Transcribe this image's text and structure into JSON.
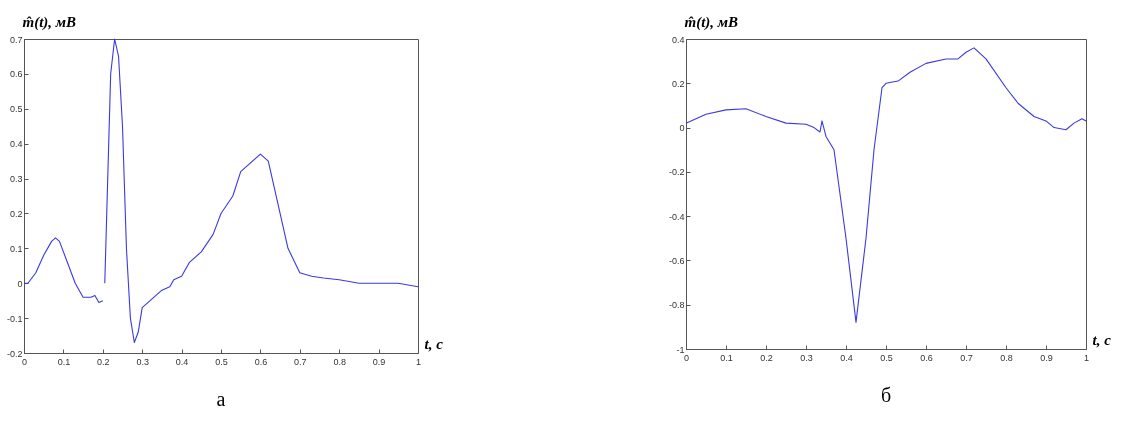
{
  "chart_data": [
    {
      "type": "line",
      "title": "а",
      "xlabel": "t, c",
      "ylabel": "m̂(t), мВ",
      "xlim": [
        0,
        1
      ],
      "xticks": [
        0,
        0.1,
        0.2,
        0.3,
        0.4,
        0.5,
        0.6,
        0.7,
        0.8,
        0.9,
        1
      ],
      "ylim": [
        -0.2,
        0.7
      ],
      "yticks": [
        -0.2,
        -0.1,
        0,
        0.1,
        0.2,
        0.3,
        0.4,
        0.5,
        0.6,
        0.7
      ],
      "grid": false,
      "series": [
        {
          "color": "#3a3ae0",
          "x": [
            0,
            0.01,
            0.03,
            0.05,
            0.07,
            0.08,
            0.09,
            0.11,
            0.13,
            0.15,
            0.17,
            0.18,
            0.19,
            0.2,
            0.202,
            0.205,
            0.21,
            0.22,
            0.23,
            0.24,
            0.25,
            0.26,
            0.27,
            0.28,
            0.29,
            0.3,
            0.33,
            0.35,
            0.37,
            0.38,
            0.4,
            0.42,
            0.45,
            0.48,
            0.5,
            0.53,
            0.55,
            0.57,
            0.6,
            0.62,
            0.65,
            0.67,
            0.7,
            0.73,
            0.76,
            0.8,
            0.85,
            0.9,
            0.95,
            1
          ],
          "values": [
            0,
            0,
            0.03,
            0.08,
            0.12,
            0.13,
            0.12,
            0.06,
            0,
            -0.04,
            -0.04,
            -0.035,
            -0.055,
            -0.05,
            null,
            0,
            0.2,
            0.6,
            0.7,
            0.65,
            0.45,
            0.1,
            -0.1,
            -0.17,
            -0.14,
            -0.07,
            -0.04,
            -0.02,
            -0.01,
            0.01,
            0.02,
            0.06,
            0.09,
            0.14,
            0.2,
            0.25,
            0.32,
            0.34,
            0.37,
            0.35,
            0.2,
            0.1,
            0.03,
            0.02,
            0.015,
            0.01,
            0,
            0,
            0,
            -0.01
          ]
        }
      ]
    },
    {
      "type": "line",
      "title": "б",
      "xlabel": "t, c",
      "ylabel": "m̂(t), мВ",
      "xlim": [
        0,
        1
      ],
      "xticks": [
        0,
        0.1,
        0.2,
        0.3,
        0.4,
        0.5,
        0.6,
        0.7,
        0.8,
        0.9,
        1
      ],
      "ylim": [
        -1,
        0.4
      ],
      "yticks": [
        -1,
        -0.8,
        -0.6,
        -0.4,
        -0.2,
        0,
        0.2,
        0.4
      ],
      "grid": false,
      "series": [
        {
          "color": "#3a3ae0",
          "x": [
            0,
            0.05,
            0.1,
            0.15,
            0.2,
            0.25,
            0.3,
            0.32,
            0.335,
            0.34,
            0.35,
            0.37,
            0.4,
            0.425,
            0.45,
            0.47,
            0.49,
            0.5,
            0.53,
            0.56,
            0.6,
            0.65,
            0.68,
            0.7,
            0.72,
            0.75,
            0.8,
            0.83,
            0.87,
            0.9,
            0.92,
            0.95,
            0.97,
            0.99,
            1
          ],
          "values": [
            0.02,
            0.06,
            0.08,
            0.085,
            0.05,
            0.02,
            0.015,
            0,
            -0.02,
            0.03,
            -0.04,
            -0.1,
            -0.5,
            -0.88,
            -0.5,
            -0.1,
            0.18,
            0.2,
            0.21,
            0.25,
            0.29,
            0.31,
            0.31,
            0.34,
            0.36,
            0.31,
            0.18,
            0.11,
            0.05,
            0.03,
            0,
            -0.01,
            0.02,
            0.04,
            0.03
          ]
        }
      ]
    }
  ]
}
